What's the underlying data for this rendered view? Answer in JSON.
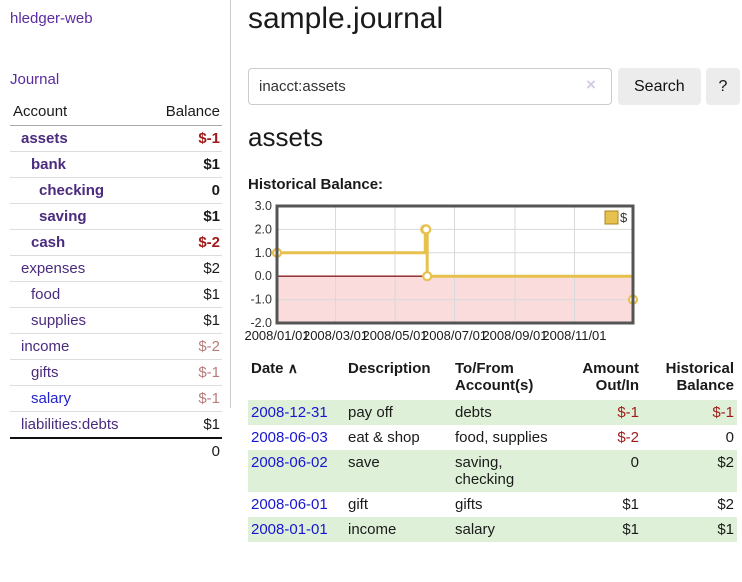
{
  "sidebar": {
    "brand": "hledger-web",
    "nav_journal": "Journal",
    "headers": {
      "account": "Account",
      "balance": "Balance"
    },
    "accounts": [
      {
        "name": "assets",
        "depth": 1,
        "bold": true,
        "name_color": "#4a2b7e",
        "balance": "$-1",
        "balance_color": "#9e1a1a"
      },
      {
        "name": "bank",
        "depth": 2,
        "bold": true,
        "name_color": "#4a2b7e",
        "balance": "$1",
        "balance_color": "#1a1a1a"
      },
      {
        "name": "checking",
        "depth": 3,
        "bold": true,
        "name_color": "#4a2b7e",
        "balance": "0",
        "balance_color": "#1a1a1a"
      },
      {
        "name": "saving",
        "depth": 3,
        "bold": true,
        "name_color": "#4a2b7e",
        "balance": "$1",
        "balance_color": "#1a1a1a"
      },
      {
        "name": "cash",
        "depth": 2,
        "bold": true,
        "name_color": "#4a2b7e",
        "balance": "$-2",
        "balance_color": "#9e1a1a"
      },
      {
        "name": "expenses",
        "depth": 1,
        "bold": false,
        "name_color": "#4a2b7e",
        "balance": "$2",
        "balance_color": "#1a1a1a"
      },
      {
        "name": "food",
        "depth": 2,
        "bold": false,
        "name_color": "#4a2b7e",
        "balance": "$1",
        "balance_color": "#1a1a1a"
      },
      {
        "name": "supplies",
        "depth": 2,
        "bold": false,
        "name_color": "#4a2b7e",
        "balance": "$1",
        "balance_color": "#1a1a1a"
      },
      {
        "name": "income",
        "depth": 1,
        "bold": false,
        "name_color": "#4a2b7e",
        "balance": "$-2",
        "balance_color": "#b97c7c"
      },
      {
        "name": "gifts",
        "depth": 2,
        "bold": false,
        "name_color": "#4a2b7e",
        "balance": "$-1",
        "balance_color": "#b97c7c"
      },
      {
        "name": "salary",
        "depth": 2,
        "bold": false,
        "name_color": "#2222cc",
        "balance": "$-1",
        "balance_color": "#b97c7c"
      },
      {
        "name": "liabilities:debts",
        "depth": 1,
        "bold": false,
        "name_color": "#4a2b7e",
        "balance": "$1",
        "balance_color": "#1a1a1a"
      }
    ],
    "total": "0"
  },
  "header": {
    "title": "sample.journal"
  },
  "search": {
    "value": "inacct:assets",
    "clear_icon": "×",
    "button_label": "Search",
    "help_label": "?"
  },
  "main": {
    "account_heading": "assets",
    "chart_label": "Historical Balance:"
  },
  "chart_data": {
    "type": "line",
    "step": true,
    "title": "Historical Balance",
    "series": [
      {
        "name": "$",
        "points": [
          [
            "2008-01-01",
            1
          ],
          [
            "2008-06-01",
            2
          ],
          [
            "2008-06-02",
            2
          ],
          [
            "2008-06-03",
            0
          ],
          [
            "2008-12-31",
            -1
          ]
        ]
      }
    ],
    "x_range": [
      "2008-01-01",
      "2008-12-31"
    ],
    "x_ticks": [
      "2008/01/01",
      "2008/03/01",
      "2008/05/01",
      "2008/07/01",
      "2008/09/01",
      "2008/11/01"
    ],
    "y_ticks": [
      "3.0",
      "2.0",
      "1.0",
      "0.0",
      "-1.0",
      "-2.0"
    ],
    "ylim": [
      -2,
      3
    ],
    "grid": true,
    "legend": {
      "label": "$",
      "position": "top-right"
    },
    "colors": {
      "line": "#e7c14e",
      "marker_fill": "#ffffff",
      "legend_border": "#a9861f",
      "negative_region": "#fadcdc",
      "zero_line": "#871f1f",
      "grid": "#d9d9d9",
      "border": "#555555",
      "tick_text": "#333333"
    }
  },
  "transactions": {
    "headers": {
      "date": "Date",
      "sort_icon": "∧",
      "description": "Description",
      "accounts": "To/From Account(s)",
      "amount": "Amount Out/In",
      "balance": "Historical Balance"
    },
    "rows": [
      {
        "date": "2008-12-31",
        "description": "pay off",
        "accounts": "debts",
        "amount": "$-1",
        "amount_color": "#9e1a1a",
        "balance": "$-1",
        "balance_color": "#9e1a1a"
      },
      {
        "date": "2008-06-03",
        "description": "eat & shop",
        "accounts": "food, supplies",
        "amount": "$-2",
        "amount_color": "#9e1a1a",
        "balance": "0",
        "balance_color": "#1a1a1a"
      },
      {
        "date": "2008-06-02",
        "description": "save",
        "accounts": "saving, checking",
        "amount": "0",
        "amount_color": "#1a1a1a",
        "balance": "$2",
        "balance_color": "#1a1a1a"
      },
      {
        "date": "2008-06-01",
        "description": "gift",
        "accounts": "gifts",
        "amount": "$1",
        "amount_color": "#1a1a1a",
        "balance": "$2",
        "balance_color": "#1a1a1a"
      },
      {
        "date": "2008-01-01",
        "description": "income",
        "accounts": "salary",
        "amount": "$1",
        "amount_color": "#1a1a1a",
        "balance": "$1",
        "balance_color": "#1a1a1a"
      }
    ]
  },
  "colors": {
    "row_stripe_green": "#dff0d8",
    "date_link_blue": "#1616d1",
    "nav_purple": "#5a2ca0",
    "account_purple": "#4a2b7e",
    "negative_strong": "#9e1a1a",
    "negative_soft": "#b97c7c"
  }
}
